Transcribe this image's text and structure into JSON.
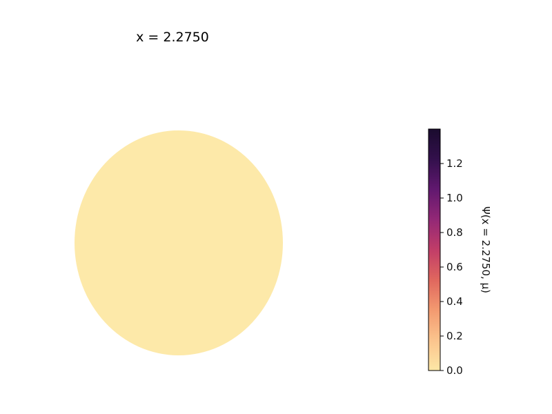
{
  "chart_data": {
    "type": "heatmap",
    "title": "x = 2.2750",
    "shape": "disk",
    "field_value": 0.0,
    "field_color": "#fde9a9",
    "colorbar": {
      "label": "Ψ(x = 2.2750, μ)",
      "vmin": 0.0,
      "vmax": 1.4,
      "ticks": [
        "0.0",
        "0.2",
        "0.4",
        "0.6",
        "0.8",
        "1.0",
        "1.2"
      ],
      "tick_values": [
        0.0,
        0.2,
        0.4,
        0.6,
        0.8,
        1.0,
        1.2
      ],
      "colormap": "magma_r",
      "colormap_stops": [
        "#fcfdbf",
        "#feca8d",
        "#fd9567",
        "#f1605d",
        "#cd4071",
        "#9e2f7f",
        "#721f81",
        "#440f76",
        "#180f3d",
        "#000004"
      ],
      "display_stops": [
        "#fde7a6",
        "#fbc48d",
        "#f39a70",
        "#e0675e",
        "#c13d68",
        "#932876",
        "#61186f",
        "#33104c",
        "#1a0b2e"
      ]
    },
    "grid": false,
    "axes_visible": false
  }
}
